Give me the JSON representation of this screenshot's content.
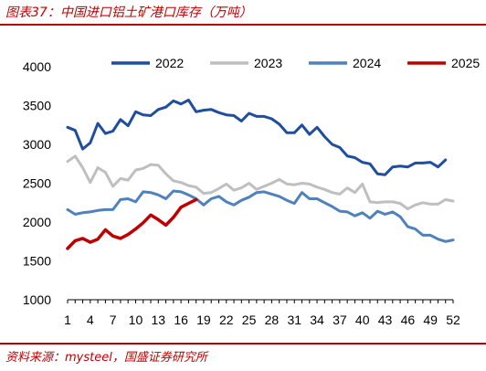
{
  "header": {
    "title": "图表37：中国进口铝土矿港口库存（万吨）"
  },
  "footer": {
    "source": "资料来源：mysteel，国盛证券研究所"
  },
  "chart_data": {
    "type": "line",
    "title": "图表37：中国进口铝土矿港口库存（万吨）",
    "xlabel": "",
    "ylabel": "",
    "x_tick_labels": [
      "1",
      "4",
      "7",
      "10",
      "13",
      "16",
      "19",
      "22",
      "25",
      "28",
      "31",
      "34",
      "37",
      "40",
      "43",
      "46",
      "49",
      "52"
    ],
    "x_range": [
      1,
      52
    ],
    "y_ticks": [
      1000,
      1500,
      2000,
      2500,
      3000,
      3500,
      4000
    ],
    "ylim": [
      1000,
      4000
    ],
    "grid": false,
    "legend_position": "top",
    "series": [
      {
        "name": "2022",
        "color": "#1f4e9e",
        "values": [
          3220,
          3180,
          2940,
          3020,
          3270,
          3140,
          3170,
          3320,
          3240,
          3420,
          3380,
          3370,
          3450,
          3480,
          3560,
          3520,
          3570,
          3420,
          3440,
          3450,
          3410,
          3380,
          3370,
          3300,
          3400,
          3360,
          3360,
          3330,
          3260,
          3150,
          3150,
          3250,
          3130,
          3220,
          3100,
          3000,
          2960,
          2850,
          2830,
          2770,
          2750,
          2620,
          2610,
          2710,
          2720,
          2710,
          2760,
          2760,
          2770,
          2710,
          2800
        ]
      },
      {
        "name": "2023",
        "color": "#bfbfbf",
        "values": [
          2780,
          2850,
          2700,
          2510,
          2700,
          2640,
          2460,
          2560,
          2540,
          2670,
          2690,
          2740,
          2730,
          2620,
          2530,
          2510,
          2470,
          2450,
          2370,
          2380,
          2430,
          2490,
          2410,
          2440,
          2500,
          2420,
          2460,
          2500,
          2550,
          2490,
          2480,
          2500,
          2490,
          2450,
          2420,
          2380,
          2360,
          2440,
          2380,
          2490,
          2260,
          2250,
          2260,
          2260,
          2240,
          2170,
          2220,
          2250,
          2230,
          2230,
          2290,
          2270
        ]
      },
      {
        "name": "2024",
        "color": "#4f81bd",
        "values": [
          2160,
          2100,
          2120,
          2130,
          2150,
          2160,
          2160,
          2290,
          2300,
          2260,
          2390,
          2380,
          2350,
          2300,
          2400,
          2390,
          2350,
          2300,
          2220,
          2300,
          2330,
          2260,
          2220,
          2280,
          2320,
          2380,
          2390,
          2360,
          2330,
          2280,
          2240,
          2380,
          2300,
          2300,
          2250,
          2200,
          2140,
          2130,
          2080,
          2120,
          2050,
          2140,
          2100,
          2130,
          2070,
          1940,
          1910,
          1830,
          1830,
          1780,
          1750,
          1770
        ]
      },
      {
        "name": "2025",
        "color": "#c00000",
        "values": [
          1660,
          1760,
          1790,
          1740,
          1780,
          1900,
          1820,
          1790,
          1840,
          1910,
          1990,
          2090,
          2030,
          1960,
          2060,
          2190,
          2240,
          2290
        ]
      }
    ]
  }
}
